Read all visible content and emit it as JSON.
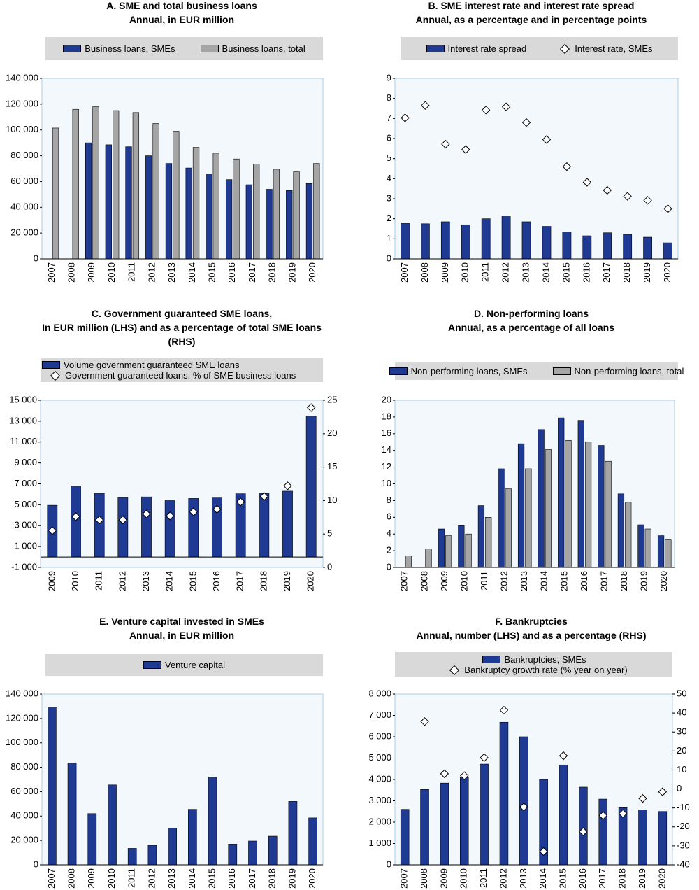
{
  "chart_data": [
    {
      "type": "bar",
      "title": "A. SME and total business loans",
      "subtitle": "Annual, in EUR million",
      "legend": "row",
      "categories": [
        "2007",
        "2008",
        "2009",
        "2010",
        "2011",
        "2012",
        "2013",
        "2014",
        "2015",
        "2016",
        "2017",
        "2018",
        "2019",
        "2020"
      ],
      "series": [
        {
          "name": "Business loans, SMEs",
          "color": "#1f3a93",
          "kind": "bar",
          "values": [
            null,
            null,
            90000,
            88500,
            87000,
            80000,
            74000,
            70500,
            66000,
            61500,
            57500,
            54000,
            53000,
            58500
          ]
        },
        {
          "name": "Business loans, total",
          "color": "#a5a5a5",
          "kind": "bar",
          "values": [
            101500,
            116000,
            118000,
            115000,
            113500,
            105000,
            99000,
            86500,
            82000,
            77500,
            73500,
            69500,
            67500,
            74000
          ]
        }
      ],
      "ylim": [
        0,
        140000
      ],
      "yticks": [
        0,
        {
          "value": 20000,
          "label": "20 000"
        },
        {
          "value": 40000,
          "label": "40 000"
        },
        {
          "value": 60000,
          "label": "60 000"
        },
        {
          "value": 80000,
          "label": "80 000"
        },
        {
          "value": 100000,
          "label": "100 000"
        },
        {
          "value": 120000,
          "label": "120 000"
        },
        {
          "value": 140000,
          "label": "140 000"
        }
      ],
      "grid": false
    },
    {
      "type": "bar",
      "title": "B. SME interest rate and interest rate spread",
      "subtitle": "Annual, as a percentage and in percentage points",
      "legend": "row",
      "categories": [
        "2007",
        "2008",
        "2009",
        "2010",
        "2011",
        "2012",
        "2013",
        "2014",
        "2015",
        "2016",
        "2017",
        "2018",
        "2019",
        "2020"
      ],
      "series": [
        {
          "name": "Interest rate spread",
          "color": "#1f3a93",
          "kind": "bar",
          "values": [
            1.78,
            1.75,
            1.85,
            1.7,
            2.0,
            2.15,
            1.85,
            1.62,
            1.35,
            1.15,
            1.3,
            1.22,
            1.08,
            0.8
          ]
        },
        {
          "name": "Interest rate, SMEs",
          "color": "#ffffff",
          "kind": "marker",
          "values": [
            7.03,
            7.65,
            5.72,
            5.45,
            7.42,
            7.58,
            6.8,
            5.95,
            4.6,
            3.82,
            3.42,
            3.12,
            2.92,
            2.5
          ]
        }
      ],
      "ylim": [
        0,
        9
      ],
      "yticks": [
        0,
        1,
        2,
        3,
        4,
        5,
        6,
        7,
        8,
        9
      ],
      "grid": false
    },
    {
      "type": "bar",
      "title": "C. Government guaranteed SME loans,",
      "subtitle": "In EUR million (LHS) and as a percentage of total SME loans (RHS)",
      "legend": "column-left",
      "categories": [
        "2009",
        "2010",
        "2011",
        "2012",
        "2013",
        "2014",
        "2015",
        "2016",
        "2017",
        "2018",
        "2019",
        "2020"
      ],
      "series": [
        {
          "name": "Volume government guaranteed SME loans",
          "color": "#1f3a93",
          "kind": "bar",
          "values": [
            4950,
            6800,
            6100,
            5700,
            5750,
            5450,
            5600,
            5650,
            6050,
            6100,
            6300,
            13500
          ]
        },
        {
          "name": "Government guaranteed loans, % of SME business loans",
          "color": "#ffffff",
          "kind": "marker",
          "axis": "y2",
          "values": [
            5.5,
            7.6,
            7.1,
            7.1,
            8.0,
            7.7,
            8.3,
            8.7,
            9.8,
            10.6,
            12.2,
            23.9
          ]
        }
      ],
      "ylim": [
        -1000,
        15000
      ],
      "yticks": [
        {
          "value": -1000,
          "label": "-1 000"
        },
        {
          "value": 1000,
          "label": "1 000"
        },
        {
          "value": 3000,
          "label": "3 000"
        },
        {
          "value": 5000,
          "label": "5 000"
        },
        {
          "value": 7000,
          "label": "7 000"
        },
        {
          "value": 9000,
          "label": "9 000"
        },
        {
          "value": 11000,
          "label": "11 000"
        },
        {
          "value": 13000,
          "label": "13 000"
        },
        {
          "value": 15000,
          "label": "15 000"
        }
      ],
      "y2lim": [
        0,
        25
      ],
      "y2ticks": [
        0,
        5,
        10,
        15,
        20,
        25
      ],
      "grid": false
    },
    {
      "type": "bar",
      "title": "D. Non-performing loans",
      "subtitle": "Annual, as a percentage of all loans",
      "legend": "row",
      "categories": [
        "2007",
        "2008",
        "2009",
        "2010",
        "2011",
        "2012",
        "2013",
        "2014",
        "2015",
        "2016",
        "2017",
        "2018",
        "2019",
        "2020"
      ],
      "series": [
        {
          "name": "Non-performing loans, SMEs",
          "color": "#1f3a93",
          "kind": "bar",
          "values": [
            null,
            null,
            4.6,
            5.0,
            7.4,
            11.8,
            14.8,
            16.5,
            17.9,
            17.6,
            14.6,
            8.8,
            5.1,
            3.8
          ]
        },
        {
          "name": "Non-performing loans, total",
          "color": "#a5a5a5",
          "kind": "bar",
          "values": [
            1.4,
            2.2,
            3.8,
            4.0,
            6.0,
            9.4,
            11.8,
            14.1,
            15.2,
            15.0,
            12.7,
            7.8,
            4.6,
            3.3
          ]
        }
      ],
      "ylim": [
        0,
        20
      ],
      "yticks": [
        0,
        2,
        4,
        6,
        8,
        10,
        12,
        14,
        16,
        18,
        20
      ],
      "grid": false
    },
    {
      "type": "bar",
      "title": "E. Venture capital invested in SMEs",
      "subtitle": "Annual, in EUR million",
      "legend": "row",
      "categories": [
        "2007",
        "2008",
        "2009",
        "2010",
        "2011",
        "2012",
        "2013",
        "2014",
        "2015",
        "2016",
        "2017",
        "2018",
        "2019",
        "2020"
      ],
      "series": [
        {
          "name": "Venture capital",
          "color": "#1f3a93",
          "kind": "bar",
          "values": [
            129500,
            83500,
            42000,
            65500,
            13500,
            16000,
            30000,
            45500,
            72000,
            17000,
            19500,
            23500,
            52000,
            38500
          ]
        }
      ],
      "ylim": [
        0,
        140000
      ],
      "yticks": [
        0,
        {
          "value": 20000,
          "label": "20 000"
        },
        {
          "value": 40000,
          "label": "40 000"
        },
        {
          "value": 60000,
          "label": "60 000"
        },
        {
          "value": 80000,
          "label": "80 000"
        },
        {
          "value": 100000,
          "label": "100 000"
        },
        {
          "value": 120000,
          "label": "120 000"
        },
        {
          "value": 140000,
          "label": "140 000"
        }
      ],
      "grid": false
    },
    {
      "type": "bar",
      "title": "F. Bankruptcies",
      "subtitle": "Annual, number (LHS) and as a percentage (RHS)",
      "legend": "column-center",
      "categories": [
        "2007",
        "2008",
        "2009",
        "2010",
        "2011",
        "2012",
        "2013",
        "2014",
        "2015",
        "2016",
        "2017",
        "2018",
        "2019",
        "2020"
      ],
      "series": [
        {
          "name": "Bankruptcies, SMEs",
          "color": "#1f3a93",
          "kind": "bar",
          "values": [
            2600,
            3530,
            3830,
            4100,
            4720,
            6680,
            6000,
            4000,
            4680,
            3640,
            3080,
            2680,
            2570,
            2500
          ]
        },
        {
          "name": "Bankruptcy growth rate (% year on year)",
          "color": "#ffffff",
          "kind": "marker",
          "axis": "y2",
          "values": [
            null,
            35.5,
            8.0,
            7.0,
            16.5,
            41.5,
            -9.5,
            -33,
            17.5,
            -22.5,
            -14,
            -13,
            -5,
            -1.5
          ]
        }
      ],
      "ylim": [
        0,
        8000
      ],
      "yticks": [
        0,
        {
          "value": 1000,
          "label": "1 000"
        },
        {
          "value": 2000,
          "label": "2 000"
        },
        {
          "value": 3000,
          "label": "3 000"
        },
        {
          "value": 4000,
          "label": "4 000"
        },
        {
          "value": 5000,
          "label": "5 000"
        },
        {
          "value": 6000,
          "label": "6 000"
        },
        {
          "value": 7000,
          "label": "7 000"
        },
        {
          "value": 8000,
          "label": "8 000"
        }
      ],
      "y2lim": [
        -40,
        50
      ],
      "y2ticks": [
        -40,
        -30,
        -20,
        -10,
        0,
        10,
        20,
        30,
        40,
        50
      ],
      "grid": false
    }
  ]
}
